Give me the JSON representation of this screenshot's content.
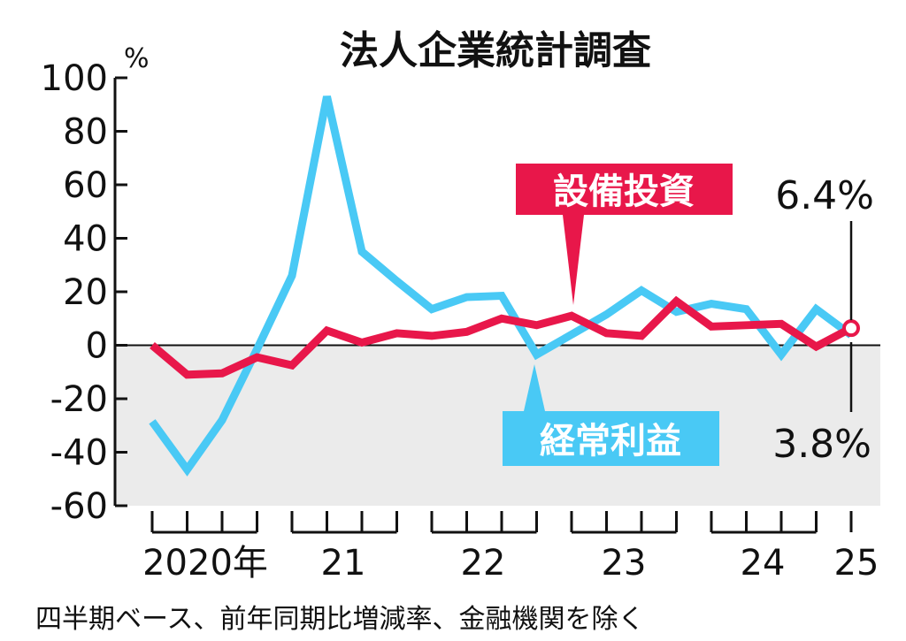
{
  "chart_data": {
    "type": "line",
    "title": "法人企業統計調査",
    "ylabel": "%",
    "ylim": [
      -60,
      100
    ],
    "yticks": [
      "100",
      "80",
      "60",
      "40",
      "20",
      "0",
      "-20",
      "-40",
      "-60"
    ],
    "year_labels": [
      "2020年",
      "21",
      "22",
      "23",
      "24",
      "25"
    ],
    "x": [
      "2020Q1",
      "2020Q2",
      "2020Q3",
      "2020Q4",
      "2021Q1",
      "2021Q2",
      "2021Q3",
      "2021Q4",
      "2022Q1",
      "2022Q2",
      "2022Q3",
      "2022Q4",
      "2023Q1",
      "2023Q2",
      "2023Q3",
      "2023Q4",
      "2024Q1",
      "2024Q2",
      "2024Q3",
      "2024Q4",
      "2025Q1"
    ],
    "series": [
      {
        "name": "設備投資",
        "color": "#e8174a",
        "values": [
          0.0,
          -11.0,
          -10.5,
          -4.5,
          -7.5,
          5.5,
          1.0,
          4.5,
          3.5,
          5.0,
          10.0,
          7.5,
          11.0,
          4.5,
          3.5,
          16.5,
          7.0,
          7.5,
          8.0,
          -0.5,
          6.4
        ],
        "end_label": "6.4%"
      },
      {
        "name": "経常利益",
        "color": "#49c9f5",
        "values": [
          -28.5,
          -46.5,
          -28.0,
          -1.5,
          26.0,
          93.0,
          35.0,
          24.0,
          13.5,
          18.0,
          18.5,
          -3.5,
          4.0,
          11.5,
          20.5,
          12.5,
          15.5,
          13.5,
          -3.5,
          13.5,
          3.8
        ],
        "end_label": "3.8%"
      }
    ],
    "negative_region_color": "#ebebeb",
    "grid": false,
    "legend": "inline-labels",
    "footnote": "四半期ベース、前年同期比増減率、金融機関を除く"
  }
}
